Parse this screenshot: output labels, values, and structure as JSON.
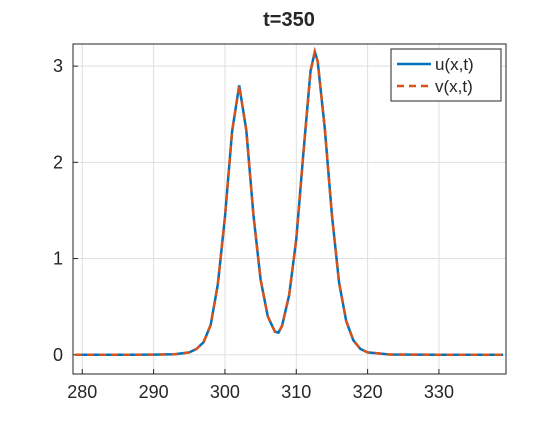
{
  "chart_data": {
    "type": "line",
    "title": "t=350",
    "x": [
      279,
      285,
      290,
      293,
      295,
      296,
      297,
      298,
      299,
      300,
      301,
      302,
      303,
      304,
      305,
      306,
      307,
      307.5,
      308,
      309,
      310,
      311,
      312,
      312.6,
      313,
      314,
      315,
      316,
      317,
      318,
      319,
      320,
      323,
      330,
      339
    ],
    "series": [
      {
        "name": "u(x,t)",
        "color": "#0072BD",
        "dash": false,
        "values": [
          0,
          0,
          0.001,
          0.005,
          0.025,
          0.06,
          0.13,
          0.31,
          0.73,
          1.43,
          2.32,
          2.8,
          2.33,
          1.45,
          0.78,
          0.4,
          0.24,
          0.23,
          0.3,
          0.62,
          1.2,
          2.1,
          2.95,
          3.15,
          3.05,
          2.35,
          1.45,
          0.75,
          0.35,
          0.15,
          0.06,
          0.025,
          0.003,
          0,
          0
        ]
      },
      {
        "name": "v(x,t)",
        "color": "#D95319",
        "dash": true,
        "values": [
          0,
          0,
          0.001,
          0.005,
          0.025,
          0.06,
          0.13,
          0.31,
          0.73,
          1.43,
          2.32,
          2.8,
          2.33,
          1.45,
          0.78,
          0.4,
          0.24,
          0.23,
          0.3,
          0.62,
          1.2,
          2.1,
          2.95,
          3.15,
          3.05,
          2.35,
          1.45,
          0.75,
          0.35,
          0.15,
          0.06,
          0.025,
          0.003,
          0,
          0
        ]
      }
    ],
    "xlim": [
      278.7,
      339.4
    ],
    "ylim": [
      -0.2,
      3.23
    ],
    "xticks": [
      280,
      290,
      300,
      310,
      320,
      330
    ],
    "yticks": [
      0,
      1,
      2,
      3
    ],
    "grid": true,
    "legend": "top-right"
  }
}
